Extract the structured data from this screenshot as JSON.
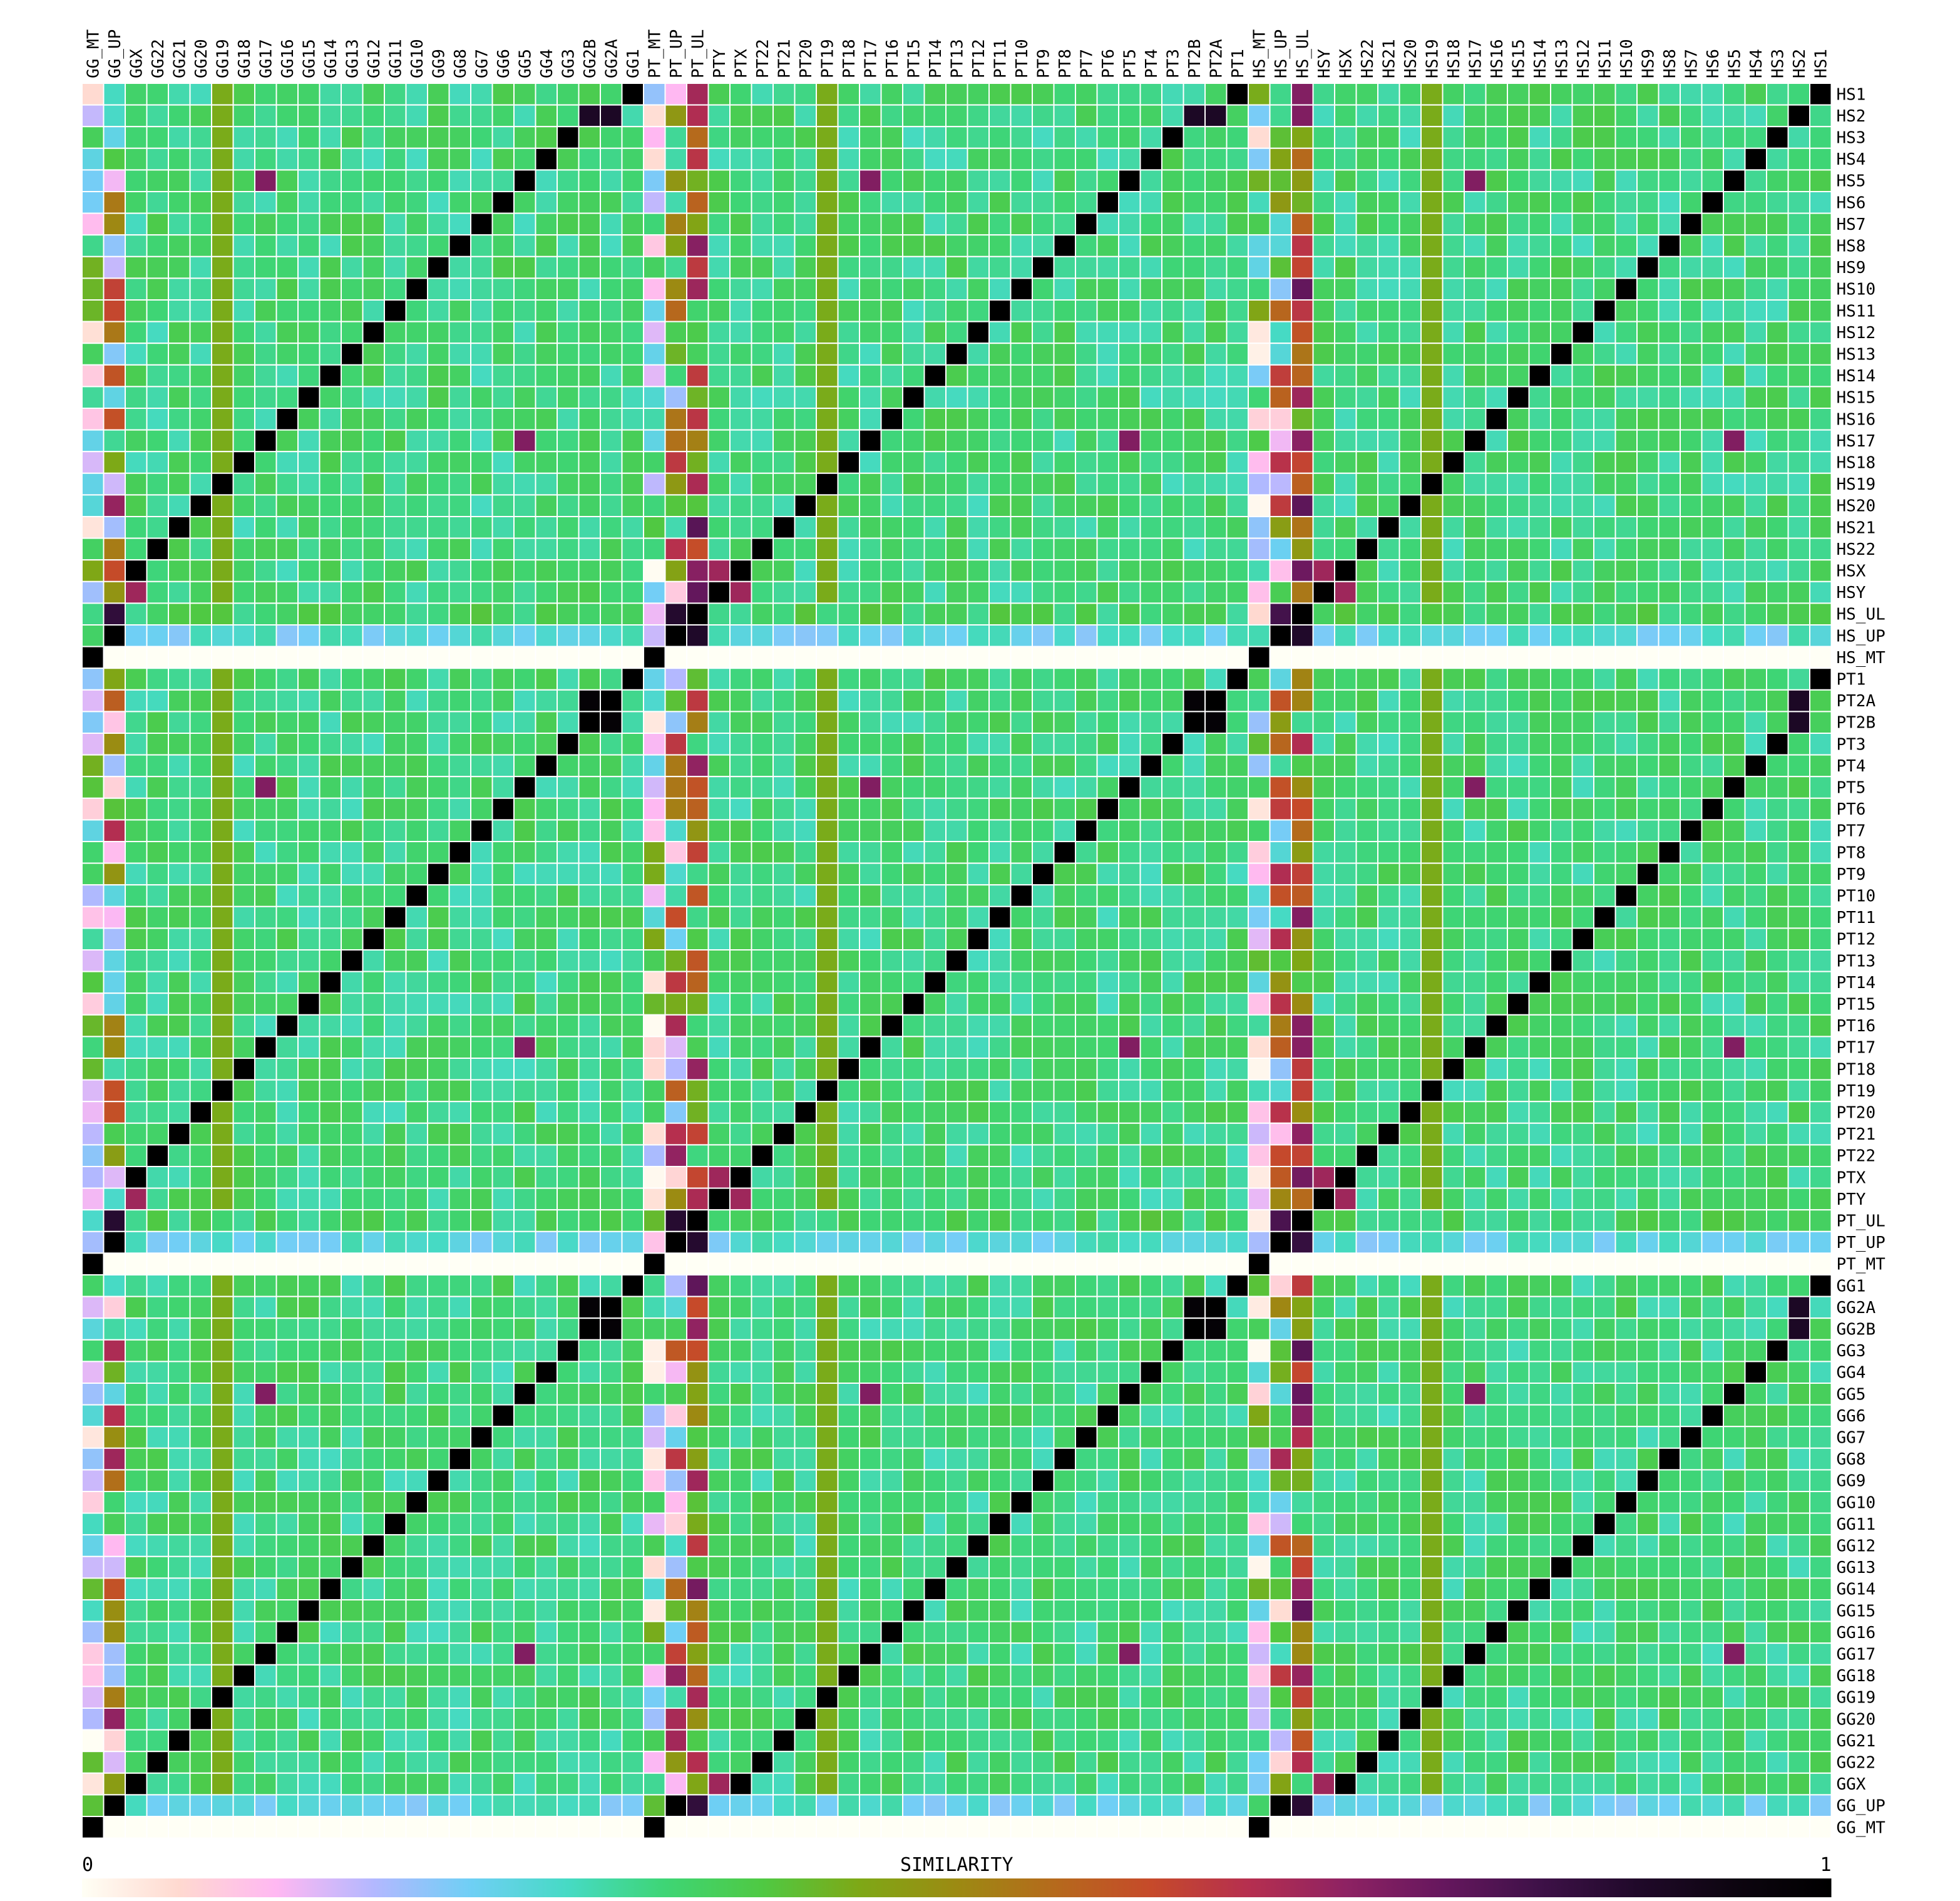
{
  "chart_data": {
    "type": "heatmap",
    "title": "",
    "colorbar": {
      "label": "SIMILARITY",
      "min_label": "0",
      "max_label": "1",
      "range": [
        0,
        1
      ],
      "stops": [
        "#fffff5",
        "#ffd9d0",
        "#ffb8f2",
        "#b3b8ff",
        "#6fcff5",
        "#46dac4",
        "#3ed575",
        "#4fc943",
        "#7ea816",
        "#9c8a12",
        "#b56a1c",
        "#c64a2a",
        "#b62f4f",
        "#8e2263",
        "#66175e",
        "#3e1148",
        "#20092a",
        "#0d0510",
        "#000000"
      ],
      "position": "bottom"
    },
    "column_labels": [
      "GG_MT",
      "GG_UP",
      "GGX",
      "GG22",
      "GG21",
      "GG20",
      "GG19",
      "GG18",
      "GG17",
      "GG16",
      "GG15",
      "GG14",
      "GG13",
      "GG12",
      "GG11",
      "GG10",
      "GG9",
      "GG8",
      "GG7",
      "GG6",
      "GG5",
      "GG4",
      "GG3",
      "GG2B",
      "GG2A",
      "GG1",
      "PT_MT",
      "PT_UP",
      "PT_UL",
      "PTY",
      "PTX",
      "PT22",
      "PT21",
      "PT20",
      "PT19",
      "PT18",
      "PT17",
      "PT16",
      "PT15",
      "PT14",
      "PT13",
      "PT12",
      "PT11",
      "PT10",
      "PT9",
      "PT8",
      "PT7",
      "PT6",
      "PT5",
      "PT4",
      "PT3",
      "PT2B",
      "PT2A",
      "PT1",
      "HS_MT",
      "HS_UP",
      "HS_UL",
      "HSY",
      "HSX",
      "HS22",
      "HS21",
      "HS20",
      "HS19",
      "HS18",
      "HS17",
      "HS16",
      "HS15",
      "HS14",
      "HS13",
      "HS12",
      "HS11",
      "HS10",
      "HS9",
      "HS8",
      "HS7",
      "HS6",
      "HS5",
      "HS4",
      "HS3",
      "HS2",
      "HS1"
    ],
    "row_labels": [
      "HS1",
      "HS2",
      "HS3",
      "HS4",
      "HS5",
      "HS6",
      "HS7",
      "HS8",
      "HS9",
      "HS10",
      "HS11",
      "HS12",
      "HS13",
      "HS14",
      "HS15",
      "HS16",
      "HS17",
      "HS18",
      "HS19",
      "HS20",
      "HS21",
      "HS22",
      "HSX",
      "HSY",
      "HS_UL",
      "HS_UP",
      "HS_MT",
      "PT1",
      "PT2A",
      "PT2B",
      "PT3",
      "PT4",
      "PT5",
      "PT6",
      "PT7",
      "PT8",
      "PT9",
      "PT10",
      "PT11",
      "PT12",
      "PT13",
      "PT14",
      "PT15",
      "PT16",
      "PT17",
      "PT18",
      "PT19",
      "PT20",
      "PT21",
      "PT22",
      "PTX",
      "PTY",
      "PT_UL",
      "PT_UP",
      "PT_MT",
      "GG1",
      "GG2A",
      "GG2B",
      "GG3",
      "GG4",
      "GG5",
      "GG6",
      "GG7",
      "GG8",
      "GG9",
      "GG10",
      "GG11",
      "GG12",
      "GG13",
      "GG14",
      "GG15",
      "GG16",
      "GG17",
      "GG18",
      "GG19",
      "GG20",
      "GG21",
      "GG22",
      "GGX",
      "GG_UP",
      "GG_MT"
    ],
    "values_approximate": {
      "typical_off_diagonal": 0.32,
      "matching_chromosome": 1.0,
      "mt_columns_range": [
        0.0,
        0.45
      ],
      "up_columns_range": [
        0.05,
        0.72
      ],
      "ul_columns_range": [
        0.3,
        0.8
      ],
      "chr19_columns": 0.44,
      "chr5_chr17_cross": 0.74,
      "mt_rows_off_diagonal": 0.0
    }
  }
}
